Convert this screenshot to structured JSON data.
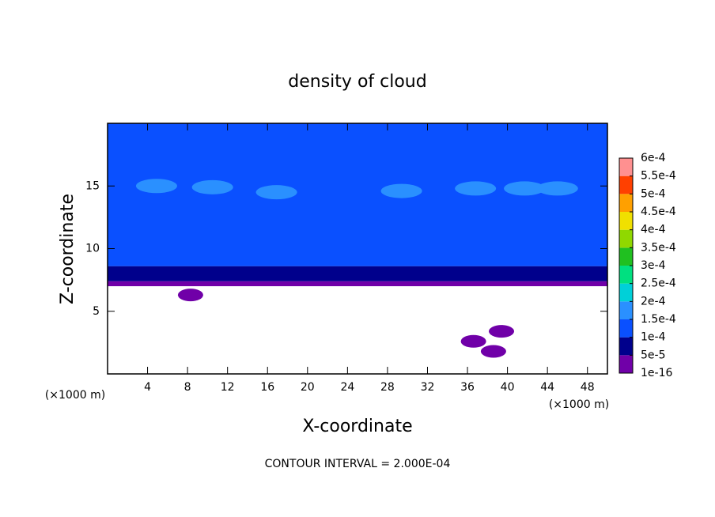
{
  "chart_data": {
    "type": "contour",
    "title": "density of cloud",
    "x_label": "X-coordinate",
    "y_label": "Z-coordinate",
    "x_unit": "(×1000 m)",
    "y_unit": "(×1000 m)",
    "note": "CONTOUR INTERVAL = 2.000E-04",
    "xlim": [
      0,
      50
    ],
    "ylim": [
      0,
      20
    ],
    "xticks": [
      4,
      8,
      12,
      16,
      20,
      24,
      28,
      32,
      36,
      40,
      44,
      48
    ],
    "yticks": [
      5,
      10,
      15
    ],
    "colorbar": {
      "ticks": [
        {
          "value": 1e-16,
          "label": "1e-16"
        },
        {
          "value": 5e-05,
          "label": "5e-5"
        },
        {
          "value": 0.0001,
          "label": "1e-4"
        },
        {
          "value": 0.00015,
          "label": "1.5e-4"
        },
        {
          "value": 0.0002,
          "label": "2e-4"
        },
        {
          "value": 0.00025,
          "label": "2.5e-4"
        },
        {
          "value": 0.0003,
          "label": "3e-4"
        },
        {
          "value": 0.00035,
          "label": "3.5e-4"
        },
        {
          "value": 0.0004,
          "label": "4e-4"
        },
        {
          "value": 0.00045,
          "label": "4.5e-4"
        },
        {
          "value": 0.0005,
          "label": "5e-4"
        },
        {
          "value": 0.00055,
          "label": "5.5e-4"
        },
        {
          "value": 0.0006,
          "label": "6e-4"
        }
      ],
      "colors": [
        "#7000a8",
        "#00008c",
        "#0a50ff",
        "#2a90ff",
        "#00d0d8",
        "#00e080",
        "#20c020",
        "#90d800",
        "#f0e000",
        "#ffa000",
        "#ff4000",
        "#ff9090"
      ]
    },
    "profile": {
      "z_bottom": [
        7,
        7.4,
        8.6
      ],
      "z_top": [
        7.4,
        8.6,
        20
      ],
      "values": [
        2e-05,
        7e-05,
        0.00012
      ]
    },
    "patches": {
      "x": [
        10.5,
        16.9,
        29.4,
        36.8,
        41.7,
        4.9,
        45,
        36.6,
        38.6,
        39.4,
        8.3
      ],
      "z": [
        14.9,
        14.5,
        14.6,
        14.8,
        14.8,
        15,
        14.8,
        2.6,
        1.8,
        3.4,
        6.3
      ],
      "values": [
        0.00017,
        0.00017,
        0.00017,
        0.00017,
        0.00017,
        0.00017,
        0.00017,
        2e-05,
        2e-05,
        2e-05,
        2e-05
      ]
    }
  }
}
